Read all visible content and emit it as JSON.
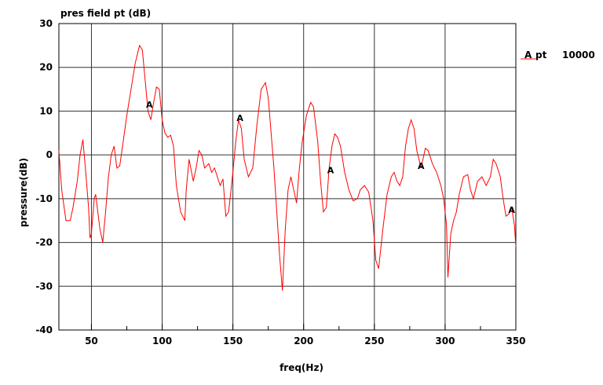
{
  "chart_data": {
    "type": "line",
    "title": "pres field pt (dB)",
    "xlabel": "freq(Hz)",
    "ylabel": "pressure(dB)",
    "xlim": [
      27,
      350
    ],
    "ylim": [
      -40,
      30
    ],
    "x_ticks": [
      50,
      100,
      150,
      200,
      250,
      300,
      350
    ],
    "x_tick_labels": [
      "50",
      "100",
      "150",
      "200",
      "250",
      "300",
      "350"
    ],
    "y_ticks": [
      -40,
      -30,
      -20,
      -10,
      0,
      10,
      20,
      30
    ],
    "y_tick_labels": [
      "-40",
      "-30",
      "-20",
      "-10",
      "0",
      "10",
      "20",
      "30"
    ],
    "grid": true,
    "line_color": "#ff0000",
    "legend": {
      "placement": "top-right",
      "marker": "A",
      "name": "pt",
      "value": "10000"
    },
    "markers": [
      {
        "label": "A",
        "x": 91,
        "y": 11.5
      },
      {
        "label": "A",
        "x": 155,
        "y": 8.5
      },
      {
        "label": "A",
        "x": 219,
        "y": -3.5
      },
      {
        "label": "A",
        "x": 283,
        "y": -2.5
      },
      {
        "label": "A",
        "x": 347,
        "y": -12.5
      }
    ],
    "series": [
      {
        "name": "pt",
        "x": [
          27,
          29,
          32,
          35,
          37,
          40,
          42,
          44,
          46,
          48,
          49,
          50,
          52,
          53,
          56,
          58,
          60,
          62,
          64,
          66,
          68,
          70,
          72,
          75,
          78,
          81,
          84,
          86,
          88,
          90,
          92,
          94,
          96,
          98,
          100,
          102,
          104,
          106,
          108,
          110,
          113,
          116,
          117,
          119,
          122,
          124,
          126,
          128,
          130,
          133,
          135,
          137,
          139,
          141,
          143,
          145,
          147,
          150,
          152,
          154,
          156,
          158,
          161,
          164,
          167,
          170,
          173,
          175,
          177,
          179,
          181,
          183,
          185,
          187,
          189,
          191,
          193,
          195,
          197,
          199,
          202,
          205,
          207,
          210,
          212,
          214,
          216,
          218,
          220,
          222,
          224,
          226,
          229,
          232,
          235,
          238,
          240,
          243,
          246,
          249,
          251,
          253,
          256,
          259,
          262,
          264,
          266,
          268,
          270,
          272,
          274,
          276,
          278,
          280,
          283,
          286,
          288,
          291,
          294,
          297,
          299,
          301,
          302,
          304,
          306,
          308,
          310,
          313,
          316,
          318,
          320,
          323,
          326,
          329,
          332,
          334,
          336,
          339,
          341,
          343,
          345,
          347,
          349,
          350
        ],
        "values": [
          1,
          -8,
          -15,
          -15,
          -12,
          -6,
          0,
          3.5,
          -4,
          -12,
          -19,
          -18,
          -10,
          -9,
          -17,
          -20,
          -13,
          -5,
          0,
          2,
          -3,
          -2.5,
          2,
          9,
          15,
          21,
          25,
          24,
          17,
          10,
          8,
          12,
          15.5,
          15,
          8,
          5,
          4,
          4.5,
          2,
          -7,
          -13,
          -15,
          -8,
          -1,
          -6,
          -3,
          1,
          0,
          -3,
          -2,
          -4,
          -3,
          -5,
          -7,
          -5.5,
          -14,
          -13,
          -4,
          3,
          8,
          6,
          -1,
          -5,
          -3,
          7,
          15,
          16.5,
          13,
          5,
          -3,
          -13,
          -23,
          -31,
          -17,
          -8,
          -5,
          -8,
          -11,
          -3,
          3,
          9,
          12,
          11,
          3,
          -6,
          -13,
          -12,
          -3,
          2,
          4.8,
          4,
          2,
          -4,
          -8,
          -10.5,
          -10,
          -8,
          -7,
          -8.5,
          -15,
          -24,
          -26,
          -17,
          -9,
          -5,
          -4,
          -6,
          -7,
          -5,
          2,
          6,
          8,
          6,
          1,
          -3,
          1.5,
          1,
          -2,
          -4,
          -7,
          -10,
          -16,
          -28,
          -18,
          -15,
          -13,
          -9,
          -5,
          -4.5,
          -8,
          -10,
          -6,
          -5,
          -7,
          -5,
          -1,
          -2,
          -5,
          -10,
          -14,
          -13.5,
          -12,
          -16,
          -21
        ]
      }
    ]
  }
}
